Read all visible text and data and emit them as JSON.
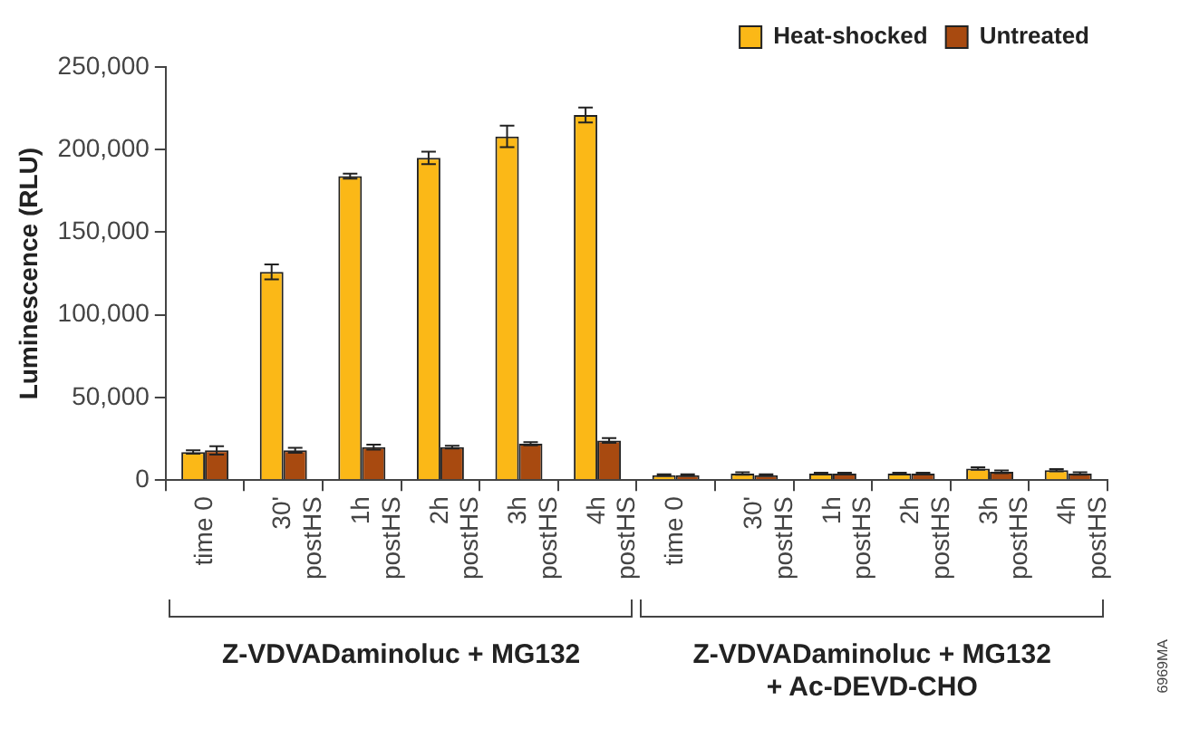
{
  "chart_data": {
    "type": "bar",
    "ylabel": "Luminescence (RLU)",
    "categories": [
      "time 0",
      "30'\npostHS",
      "1h\npostHS",
      "2h\npostHS",
      "3h\npostHS",
      "4h\npostHS",
      "time 0",
      "30'\npostHS",
      "1h\npostHS",
      "2h\npostHS",
      "3h\npostHS",
      "4h\npostHS"
    ],
    "series": [
      {
        "name": "Heat-shocked",
        "color": "#fbb817",
        "values": [
          17000,
          126000,
          184000,
          195000,
          208000,
          221000,
          3000,
          4000,
          4000,
          4000,
          7000,
          6000
        ],
        "errors": [
          1000,
          4500,
          1500,
          3800,
          6500,
          4500,
          500,
          700,
          500,
          500,
          800,
          700
        ]
      },
      {
        "name": "Untreated",
        "color": "#a84a10",
        "values": [
          18000,
          18000,
          20000,
          20000,
          22000,
          24000,
          3000,
          3000,
          4000,
          4000,
          5000,
          4000
        ],
        "errors": [
          2500,
          1500,
          1500,
          800,
          1000,
          1500,
          500,
          500,
          500,
          500,
          800,
          800
        ]
      }
    ],
    "ylim": [
      0,
      250000
    ],
    "yticks": [
      0,
      {
        "value": 50000,
        "label": "50,000"
      },
      {
        "value": 100000,
        "label": "100,000"
      },
      {
        "value": 150000,
        "label": "150,000"
      },
      {
        "value": 200000,
        "label": "200,000"
      },
      {
        "value": 250000,
        "label": "250,000"
      }
    ],
    "grid": false,
    "legend": "top right",
    "annotations": [
      "Z-VDVADaminoluc + MG132",
      "Z-VDVADaminoluc + MG132 + Ac-DEVD-CHO",
      "6969MA"
    ]
  }
}
